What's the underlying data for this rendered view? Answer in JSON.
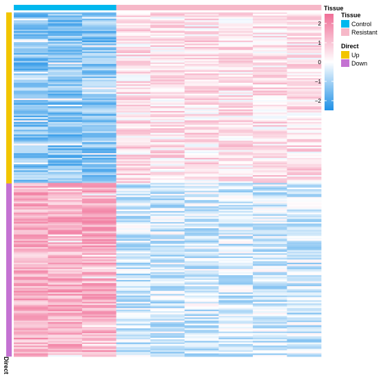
{
  "chart_data": {
    "type": "heatmap",
    "rows": 220,
    "columns": [
      {
        "tissue": "Control"
      },
      {
        "tissue": "Control"
      },
      {
        "tissue": "Control"
      },
      {
        "tissue": "Resistant"
      },
      {
        "tissue": "Resistant"
      },
      {
        "tissue": "Resistant"
      },
      {
        "tissue": "Resistant"
      },
      {
        "tissue": "Resistant"
      },
      {
        "tissue": "Resistant"
      }
    ],
    "row_groups": [
      {
        "direct": "Up",
        "fraction": 0.497
      },
      {
        "direct": "Down",
        "fraction": 0.503
      }
    ],
    "value_range": [
      -2.5,
      2.5
    ],
    "color_scale": {
      "low": "#1e90e6",
      "mid": "#ffffff",
      "high": "#f06e96"
    },
    "column_annotation_title": "Tissue",
    "row_annotation_title": "Direct",
    "legends": {
      "scale_title": "Tissue",
      "scale_ticks": [
        2,
        1,
        0,
        -1,
        -2
      ],
      "tissue": {
        "title": "Tissue",
        "items": [
          {
            "label": "Control",
            "color": "#00b8ee"
          },
          {
            "label": "Resistant",
            "color": "#f6b8c8"
          }
        ]
      },
      "direct": {
        "title": "Direct",
        "items": [
          {
            "label": "Up",
            "color": "#f2c500"
          },
          {
            "label": "Down",
            "color": "#c472d2"
          }
        ]
      }
    }
  }
}
